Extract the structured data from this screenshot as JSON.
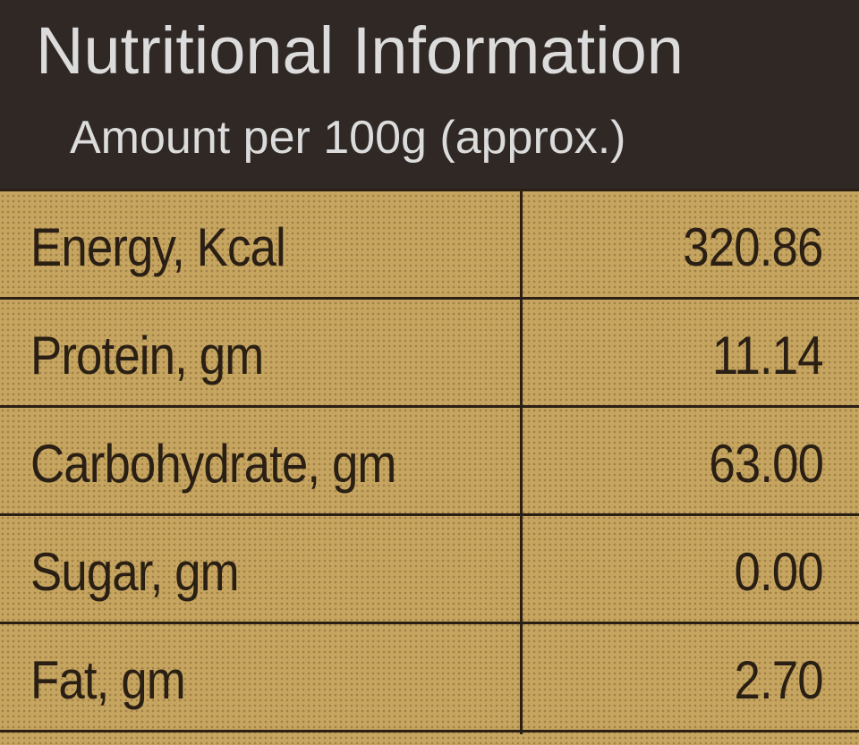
{
  "header": {
    "title": "Nutritional Information",
    "subtitle": "Amount per 100g (approx.)"
  },
  "table": {
    "rows": [
      [
        "Energy, Kcal",
        "320.86"
      ],
      [
        "Protein, gm",
        "11.14"
      ],
      [
        "Carbohydrate, gm",
        "63.00"
      ],
      [
        "Sugar, gm",
        "0.00"
      ],
      [
        "Fat, gm",
        "2.70"
      ]
    ]
  }
}
